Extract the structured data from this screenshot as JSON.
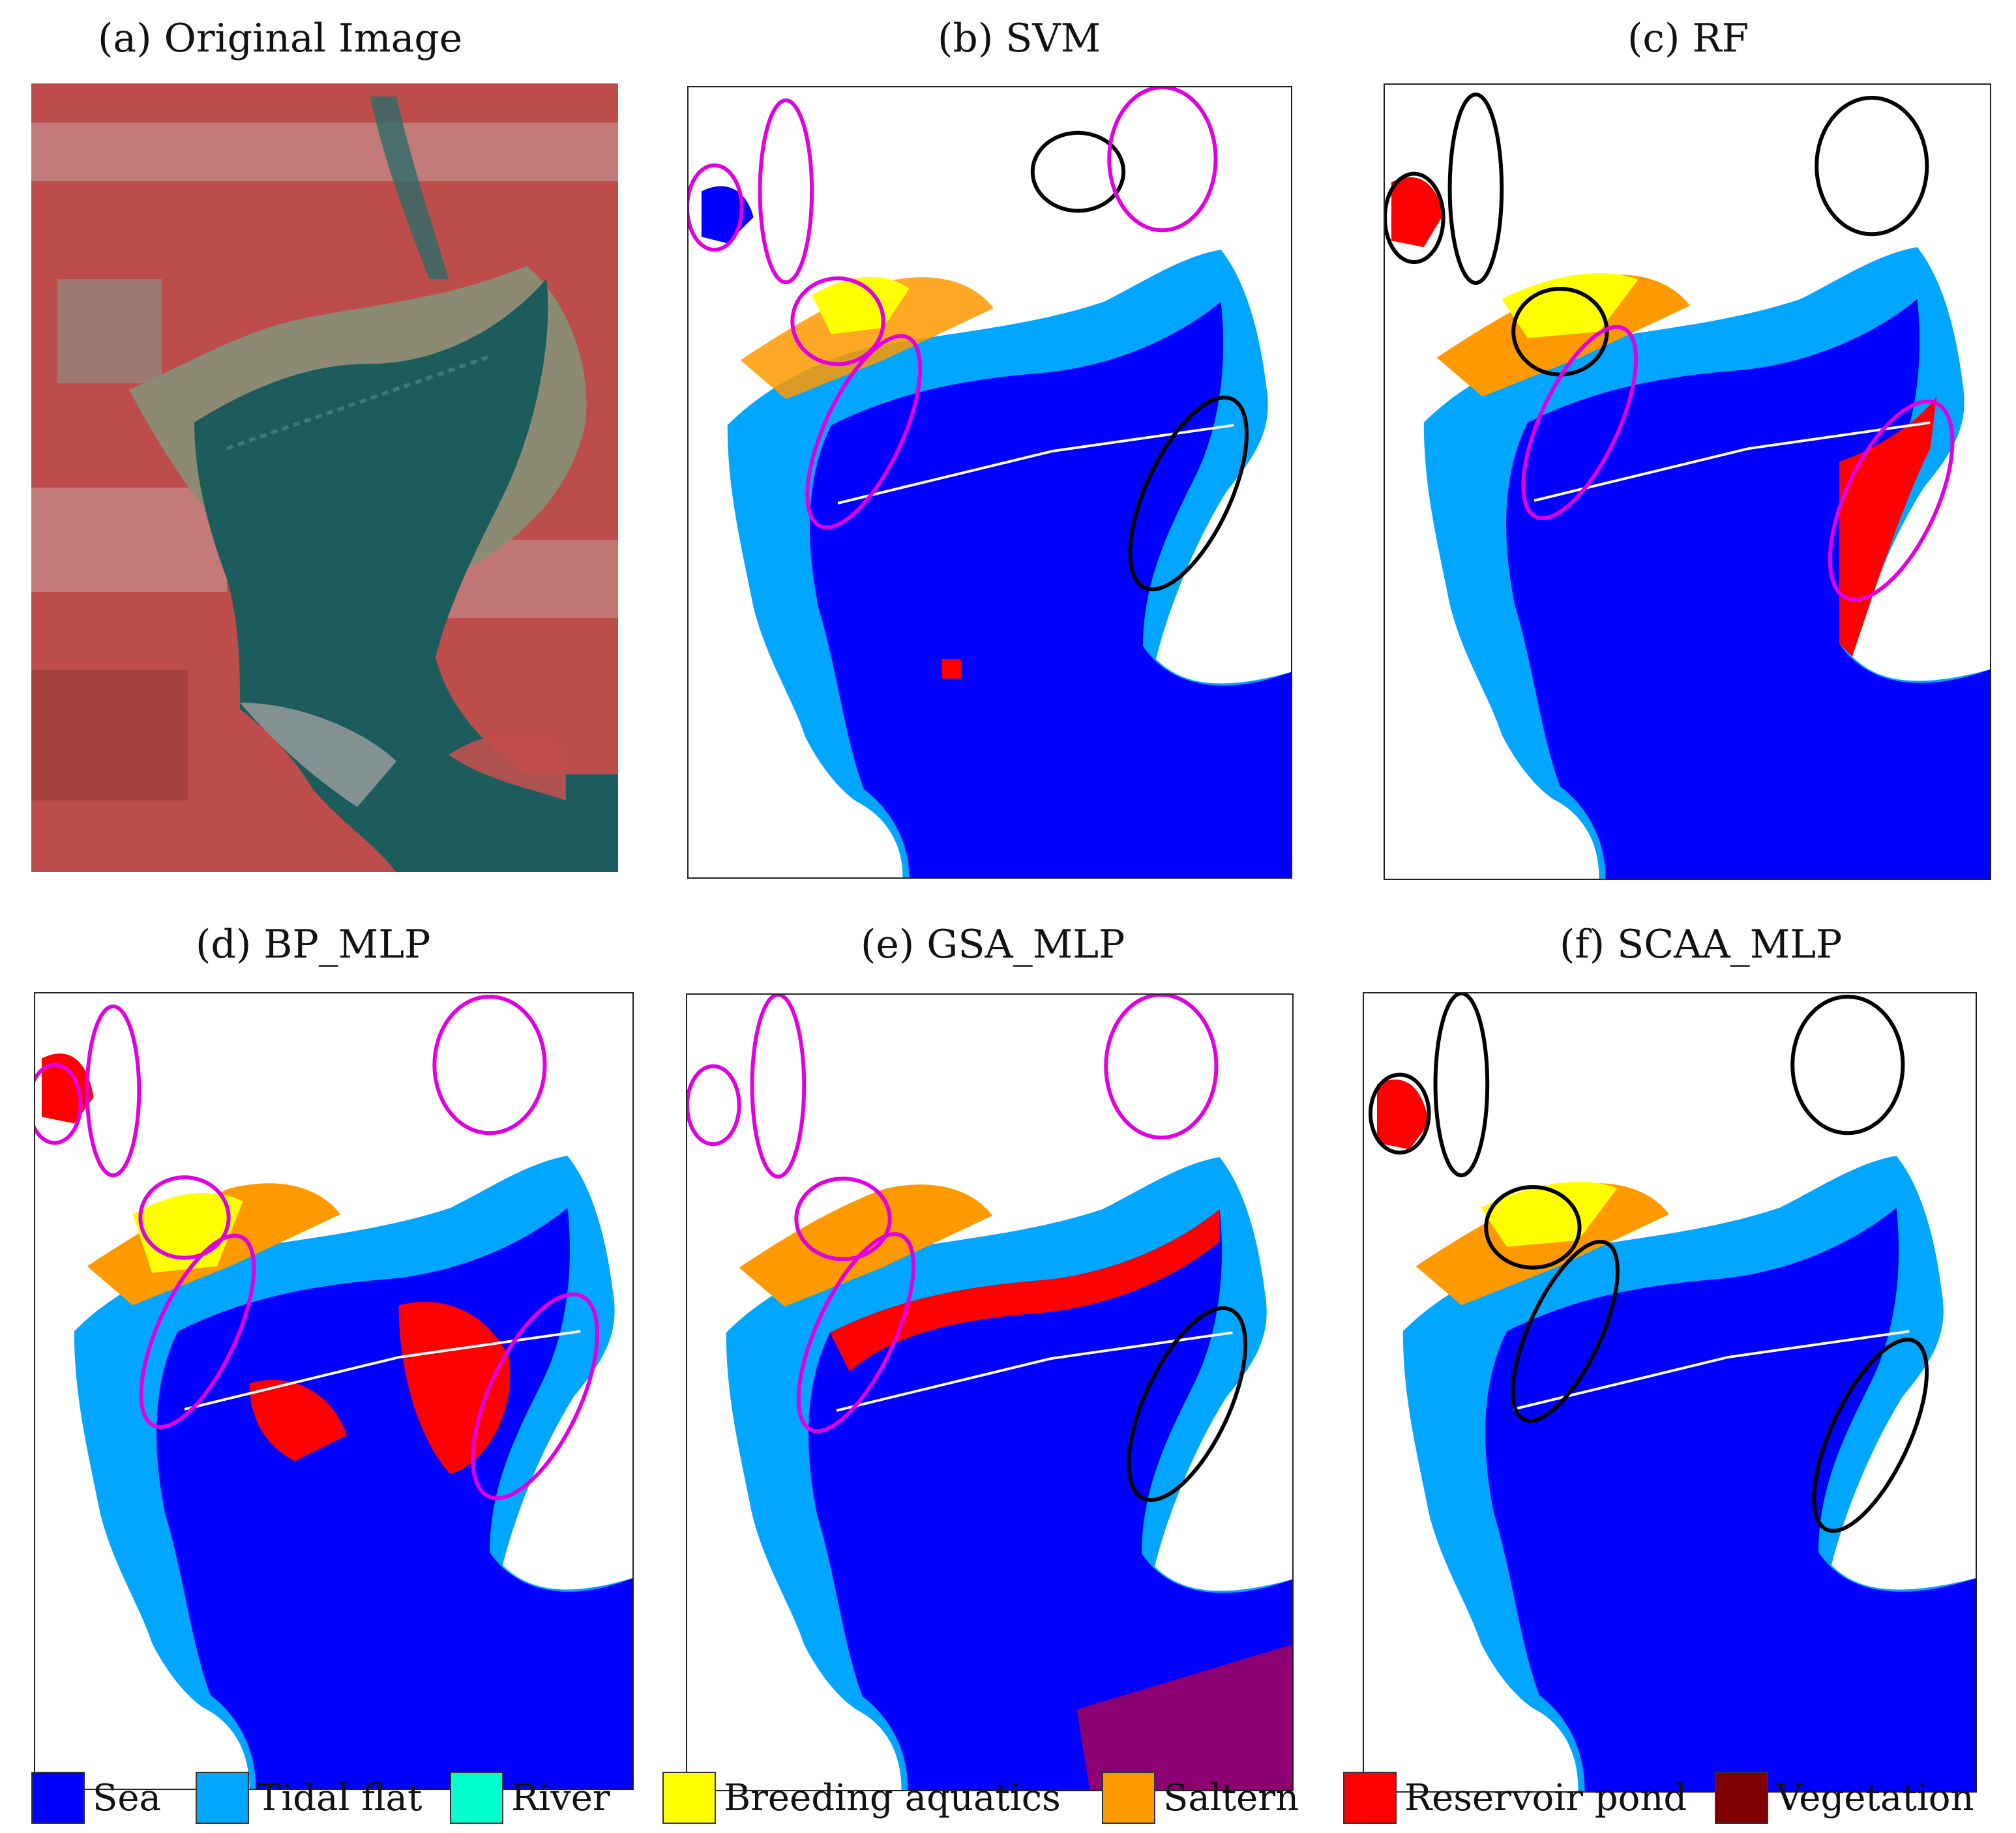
{
  "figure": {
    "panels": [
      {
        "id": "a",
        "title": "(a) Original Image"
      },
      {
        "id": "b",
        "title": "(b) SVM"
      },
      {
        "id": "c",
        "title": "(c) RF"
      },
      {
        "id": "d",
        "title": "(d) BP_MLP"
      },
      {
        "id": "e",
        "title": "(e) GSA_MLP"
      },
      {
        "id": "f",
        "title": "(f) SCAA_MLP"
      }
    ],
    "legend": [
      {
        "label": "Sea",
        "color": "#0000ff"
      },
      {
        "label": "Tidal flat",
        "color": "#00a6ff"
      },
      {
        "label": "River",
        "color": "#00ffcc"
      },
      {
        "label": "Breeding aquatics",
        "color": "#ffff00"
      },
      {
        "label": "Saltern",
        "color": "#ff9900"
      },
      {
        "label": "Reservoir pond",
        "color": "#ff0000"
      },
      {
        "label": "Vegetation",
        "color": "#800000"
      }
    ],
    "annotation_colors": {
      "magenta": "#e000e0",
      "black": "#000000"
    },
    "satellite_colors": {
      "land": "#c0504d",
      "urban": "#c9b4b4",
      "water": "#1d5c5c",
      "mudflat": "#8c8a72"
    }
  }
}
